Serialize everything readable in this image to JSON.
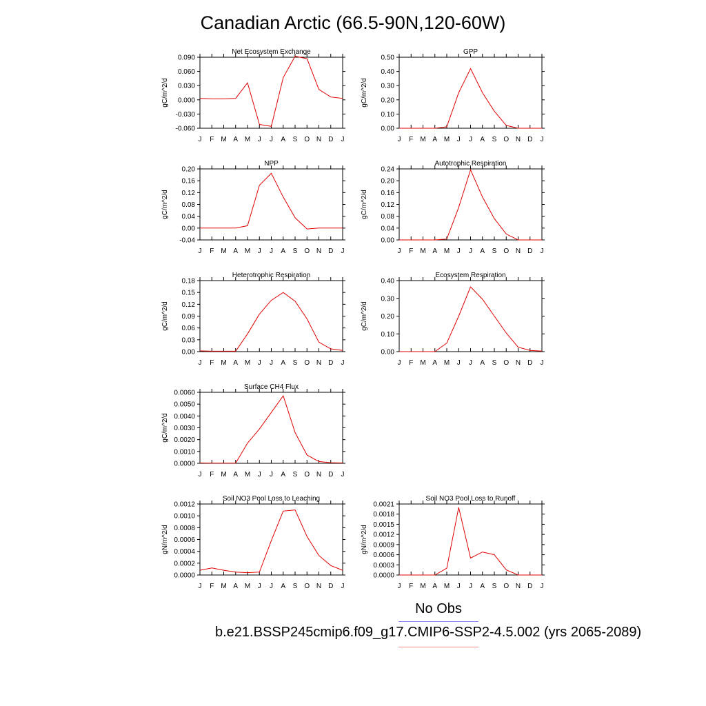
{
  "page_title": "Canadian Arctic (66.5-90N,120-60W)",
  "legend": {
    "obs_label": "No Obs",
    "case_label": "b.e21.BSSP245cmip6.f09_g17.CMIP6-SSP2-4.5.002 (yrs 2065-2089)",
    "obs_color": "#8a8af0",
    "model_color": "#f08a8a"
  },
  "line_color": "#e00000",
  "chart_data": [
    {
      "type": "line",
      "title": "Net Ecosystem Exchange",
      "ylabel": "gC/m^2/d",
      "x": [
        "J",
        "F",
        "M",
        "A",
        "M",
        "J",
        "J",
        "A",
        "S",
        "O",
        "N",
        "D",
        "J"
      ],
      "ylim": [
        -0.06,
        0.09
      ],
      "yticks": [
        "0.090",
        "0.060",
        "0.030",
        "0.000",
        "-0.030",
        "-0.060"
      ],
      "values": [
        0.003,
        0.002,
        0.002,
        0.003,
        0.036,
        -0.052,
        -0.056,
        0.047,
        0.092,
        0.087,
        0.022,
        0.006,
        0.003
      ]
    },
    {
      "type": "line",
      "title": "GPP",
      "ylabel": "gC/m^2/d",
      "x": [
        "J",
        "F",
        "M",
        "A",
        "M",
        "J",
        "J",
        "A",
        "S",
        "O",
        "N",
        "D",
        "J"
      ],
      "ylim": [
        0,
        0.5
      ],
      "yticks": [
        "0.50",
        "0.40",
        "0.30",
        "0.20",
        "0.10",
        "0.00"
      ],
      "values": [
        0,
        0,
        0,
        0,
        0.01,
        0.25,
        0.42,
        0.25,
        0.12,
        0.02,
        0,
        0,
        0
      ]
    },
    {
      "type": "line",
      "title": "NPP",
      "ylabel": "gC/m^2/d",
      "x": [
        "J",
        "F",
        "M",
        "A",
        "M",
        "J",
        "J",
        "A",
        "S",
        "O",
        "N",
        "D",
        "J"
      ],
      "ylim": [
        -0.04,
        0.2
      ],
      "yticks": [
        "0.20",
        "0.16",
        "0.12",
        "0.08",
        "0.04",
        "0.00",
        "-0.04"
      ],
      "values": [
        0,
        0,
        0,
        0,
        0.008,
        0.145,
        0.185,
        0.105,
        0.035,
        -0.003,
        0,
        0,
        0
      ]
    },
    {
      "type": "line",
      "title": "Autotrophic Respiration",
      "ylabel": "gC/m^2/d",
      "x": [
        "J",
        "F",
        "M",
        "A",
        "M",
        "J",
        "J",
        "A",
        "S",
        "O",
        "N",
        "D",
        "J"
      ],
      "ylim": [
        0,
        0.24
      ],
      "yticks": [
        "0.24",
        "0.20",
        "0.16",
        "0.12",
        "0.08",
        "0.04",
        "0.00"
      ],
      "values": [
        0,
        0,
        0,
        0,
        0.003,
        0.11,
        0.237,
        0.145,
        0.072,
        0.02,
        0,
        0,
        0
      ]
    },
    {
      "type": "line",
      "title": "Heterotrophic Respiration",
      "ylabel": "gC/m^2/d",
      "x": [
        "J",
        "F",
        "M",
        "A",
        "M",
        "J",
        "J",
        "A",
        "S",
        "O",
        "N",
        "D",
        "J"
      ],
      "ylim": [
        0,
        0.18
      ],
      "yticks": [
        "0.18",
        "0.15",
        "0.12",
        "0.09",
        "0.06",
        "0.03",
        "0.00"
      ],
      "values": [
        0.002,
        0.001,
        0.001,
        0.001,
        0.045,
        0.095,
        0.13,
        0.15,
        0.128,
        0.083,
        0.024,
        0.007,
        0.003
      ]
    },
    {
      "type": "line",
      "title": "Ecosystem Respiration",
      "ylabel": "gC/m^2/d",
      "x": [
        "J",
        "F",
        "M",
        "A",
        "M",
        "J",
        "J",
        "A",
        "S",
        "O",
        "N",
        "D",
        "J"
      ],
      "ylim": [
        0,
        0.4
      ],
      "yticks": [
        "0.40",
        "0.30",
        "0.20",
        "0.10",
        "0.00"
      ],
      "values": [
        0,
        0,
        0,
        0,
        0.048,
        0.2,
        0.365,
        0.295,
        0.2,
        0.105,
        0.025,
        0.007,
        0.003
      ]
    },
    {
      "type": "line",
      "title": "Surface CH4 Flux",
      "ylabel": "gC/m^2/d",
      "x": [
        "J",
        "F",
        "M",
        "A",
        "M",
        "J",
        "J",
        "A",
        "S",
        "O",
        "N",
        "D",
        "J"
      ],
      "ylim": [
        0,
        0.006
      ],
      "yticks": [
        "0.0060",
        "0.0050",
        "0.0040",
        "0.0030",
        "0.0020",
        "0.0010",
        "0.0000"
      ],
      "values": [
        3e-05,
        2e-05,
        2e-05,
        2e-05,
        0.0017,
        0.0029,
        0.0043,
        0.0057,
        0.0026,
        0.0007,
        0.00015,
        5e-05,
        3e-05
      ]
    },
    {
      "type": "line",
      "title": "Soil NO3 Pool Loss to Leaching",
      "ylabel": "gN/m^2/d",
      "x": [
        "J",
        "F",
        "M",
        "A",
        "M",
        "J",
        "J",
        "A",
        "S",
        "O",
        "N",
        "D",
        "J"
      ],
      "ylim": [
        0,
        0.0012
      ],
      "yticks": [
        "0.0012",
        "0.0010",
        "0.0008",
        "0.0006",
        "0.0004",
        "0.0002",
        "0.0000"
      ],
      "values": [
        8e-05,
        0.00012,
        8e-05,
        5e-05,
        4e-05,
        5e-05,
        0.00058,
        0.00108,
        0.0011,
        0.00065,
        0.00033,
        0.00016,
        8e-05
      ]
    },
    {
      "type": "line",
      "title": "Soil NO3 Pool Loss to Runoff",
      "ylabel": "gN/m^2/d",
      "x": [
        "J",
        "F",
        "M",
        "A",
        "M",
        "J",
        "J",
        "A",
        "S",
        "O",
        "N",
        "D",
        "J"
      ],
      "ylim": [
        0,
        0.0021
      ],
      "yticks": [
        "0.0021",
        "0.0018",
        "0.0015",
        "0.0012",
        "0.0009",
        "0.0006",
        "0.0003",
        "0.0000"
      ],
      "values": [
        0,
        0,
        0,
        0,
        0.0002,
        0.002,
        0.0005,
        0.00068,
        0.0006,
        0.00015,
        0,
        0,
        0
      ]
    }
  ]
}
